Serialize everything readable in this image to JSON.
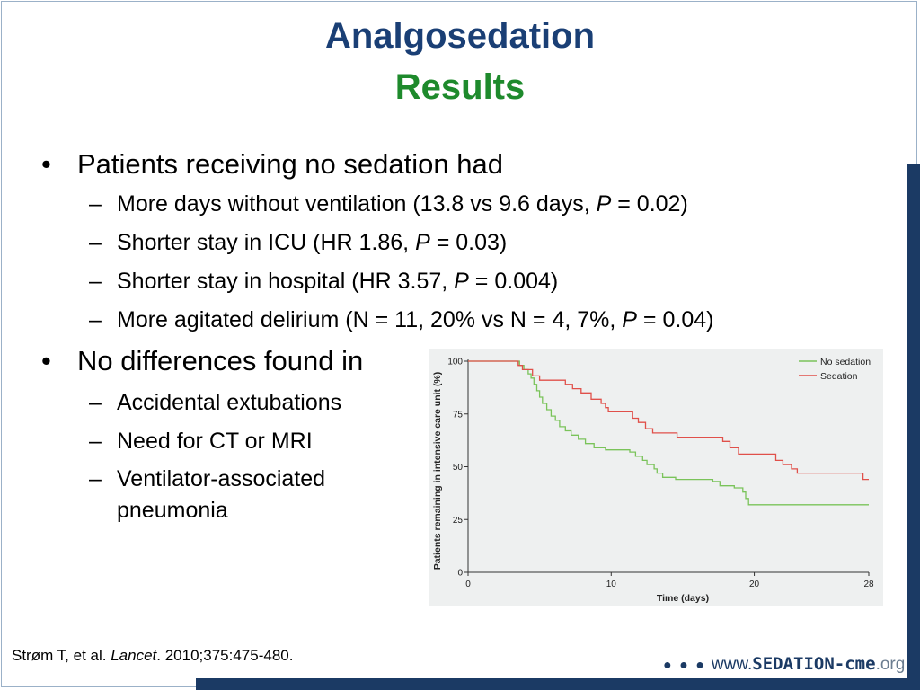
{
  "slide": {
    "title_line1": "Analgosedation",
    "title_line2": "Results",
    "bullets": [
      {
        "text": "Patients receiving no sedation had",
        "subs": [
          {
            "pre": "More days without ventilation (13.8 vs 9.6 days, ",
            "p": "P",
            "post": " = 0.02)"
          },
          {
            "pre": "Shorter stay in ICU (HR 1.86, ",
            "p": "P",
            "post": " = 0.03)"
          },
          {
            "pre": "Shorter stay in hospital (HR 3.57, ",
            "p": "P",
            "post": " = 0.004)"
          },
          {
            "pre": "More agitated delirium (N = 11, 20% vs N = 4, 7%, ",
            "p": "P",
            "post": " = 0.04)"
          }
        ]
      },
      {
        "text": "No differences found in",
        "subs": [
          {
            "text": "Accidental extubations"
          },
          {
            "text": "Need for CT or MRI"
          },
          {
            "text": "Ventilator-associated",
            "text2": "pneumonia"
          }
        ]
      }
    ],
    "bullet_glyph": "•",
    "sub_glyph": "–",
    "citation": {
      "pre": "Strøm T, et al. ",
      "journal": "Lancet",
      "post": ". 2010;375:475-480."
    },
    "brand": {
      "dots": "● ● ●",
      "part1": "www.",
      "part2": "SEDATION-cme",
      "part3": ".org"
    }
  },
  "colors": {
    "title_blue": "#1a3f75",
    "title_green": "#1e8a2c",
    "accent_bar": "#1b3a64",
    "no_sedation": "#7ac35a",
    "sedation": "#e0504a"
  },
  "chart_data": {
    "type": "line",
    "xlabel": "Time (days)",
    "ylabel": "Patients remaining in intensive care unit (%)",
    "xlim": [
      0,
      28
    ],
    "ylim": [
      0,
      100
    ],
    "x_ticks": [
      0,
      10,
      20,
      28
    ],
    "y_ticks": [
      0,
      25,
      50,
      75,
      100
    ],
    "legend_position": "top-right",
    "step": true,
    "series": [
      {
        "name": "No sedation",
        "color": "#7ac35a",
        "points": [
          [
            0,
            100
          ],
          [
            3.3,
            100
          ],
          [
            3.6,
            98
          ],
          [
            3.9,
            96
          ],
          [
            4.2,
            94
          ],
          [
            4.4,
            92
          ],
          [
            4.6,
            89
          ],
          [
            4.8,
            86
          ],
          [
            5,
            83
          ],
          [
            5.2,
            80
          ],
          [
            5.5,
            77
          ],
          [
            5.8,
            74
          ],
          [
            6.1,
            72
          ],
          [
            6.4,
            69
          ],
          [
            6.8,
            67
          ],
          [
            7.2,
            65
          ],
          [
            7.7,
            63
          ],
          [
            8.2,
            61
          ],
          [
            8.8,
            59
          ],
          [
            9.6,
            58
          ],
          [
            11.3,
            57
          ],
          [
            11.7,
            55
          ],
          [
            12.2,
            53
          ],
          [
            12.5,
            51
          ],
          [
            13,
            49
          ],
          [
            13.2,
            47
          ],
          [
            13.6,
            45
          ],
          [
            14.5,
            44
          ],
          [
            16.5,
            44
          ],
          [
            17.1,
            43
          ],
          [
            17.6,
            41
          ],
          [
            18.6,
            40
          ],
          [
            19.2,
            38
          ],
          [
            19.4,
            35
          ],
          [
            19.6,
            32
          ],
          [
            20.2,
            32
          ],
          [
            28,
            32
          ]
        ]
      },
      {
        "name": "Sedation",
        "color": "#e0504a",
        "points": [
          [
            0,
            100
          ],
          [
            3.2,
            100
          ],
          [
            3.5,
            98
          ],
          [
            3.8,
            96
          ],
          [
            4.5,
            93
          ],
          [
            5,
            91
          ],
          [
            6.8,
            89
          ],
          [
            7.3,
            87
          ],
          [
            7.9,
            85
          ],
          [
            8.6,
            82
          ],
          [
            9.3,
            80
          ],
          [
            9.6,
            78
          ],
          [
            9.8,
            76
          ],
          [
            11.4,
            76
          ],
          [
            11.5,
            73
          ],
          [
            11.9,
            71
          ],
          [
            12.4,
            68
          ],
          [
            12.9,
            66
          ],
          [
            13.9,
            66
          ],
          [
            14.6,
            64
          ],
          [
            17.3,
            64
          ],
          [
            17.8,
            62
          ],
          [
            18.3,
            59
          ],
          [
            18.9,
            56
          ],
          [
            21.3,
            56
          ],
          [
            21.5,
            53
          ],
          [
            22,
            51
          ],
          [
            22.6,
            49
          ],
          [
            23,
            47
          ],
          [
            27.4,
            47
          ],
          [
            27.6,
            44
          ],
          [
            28,
            44
          ]
        ]
      }
    ]
  }
}
